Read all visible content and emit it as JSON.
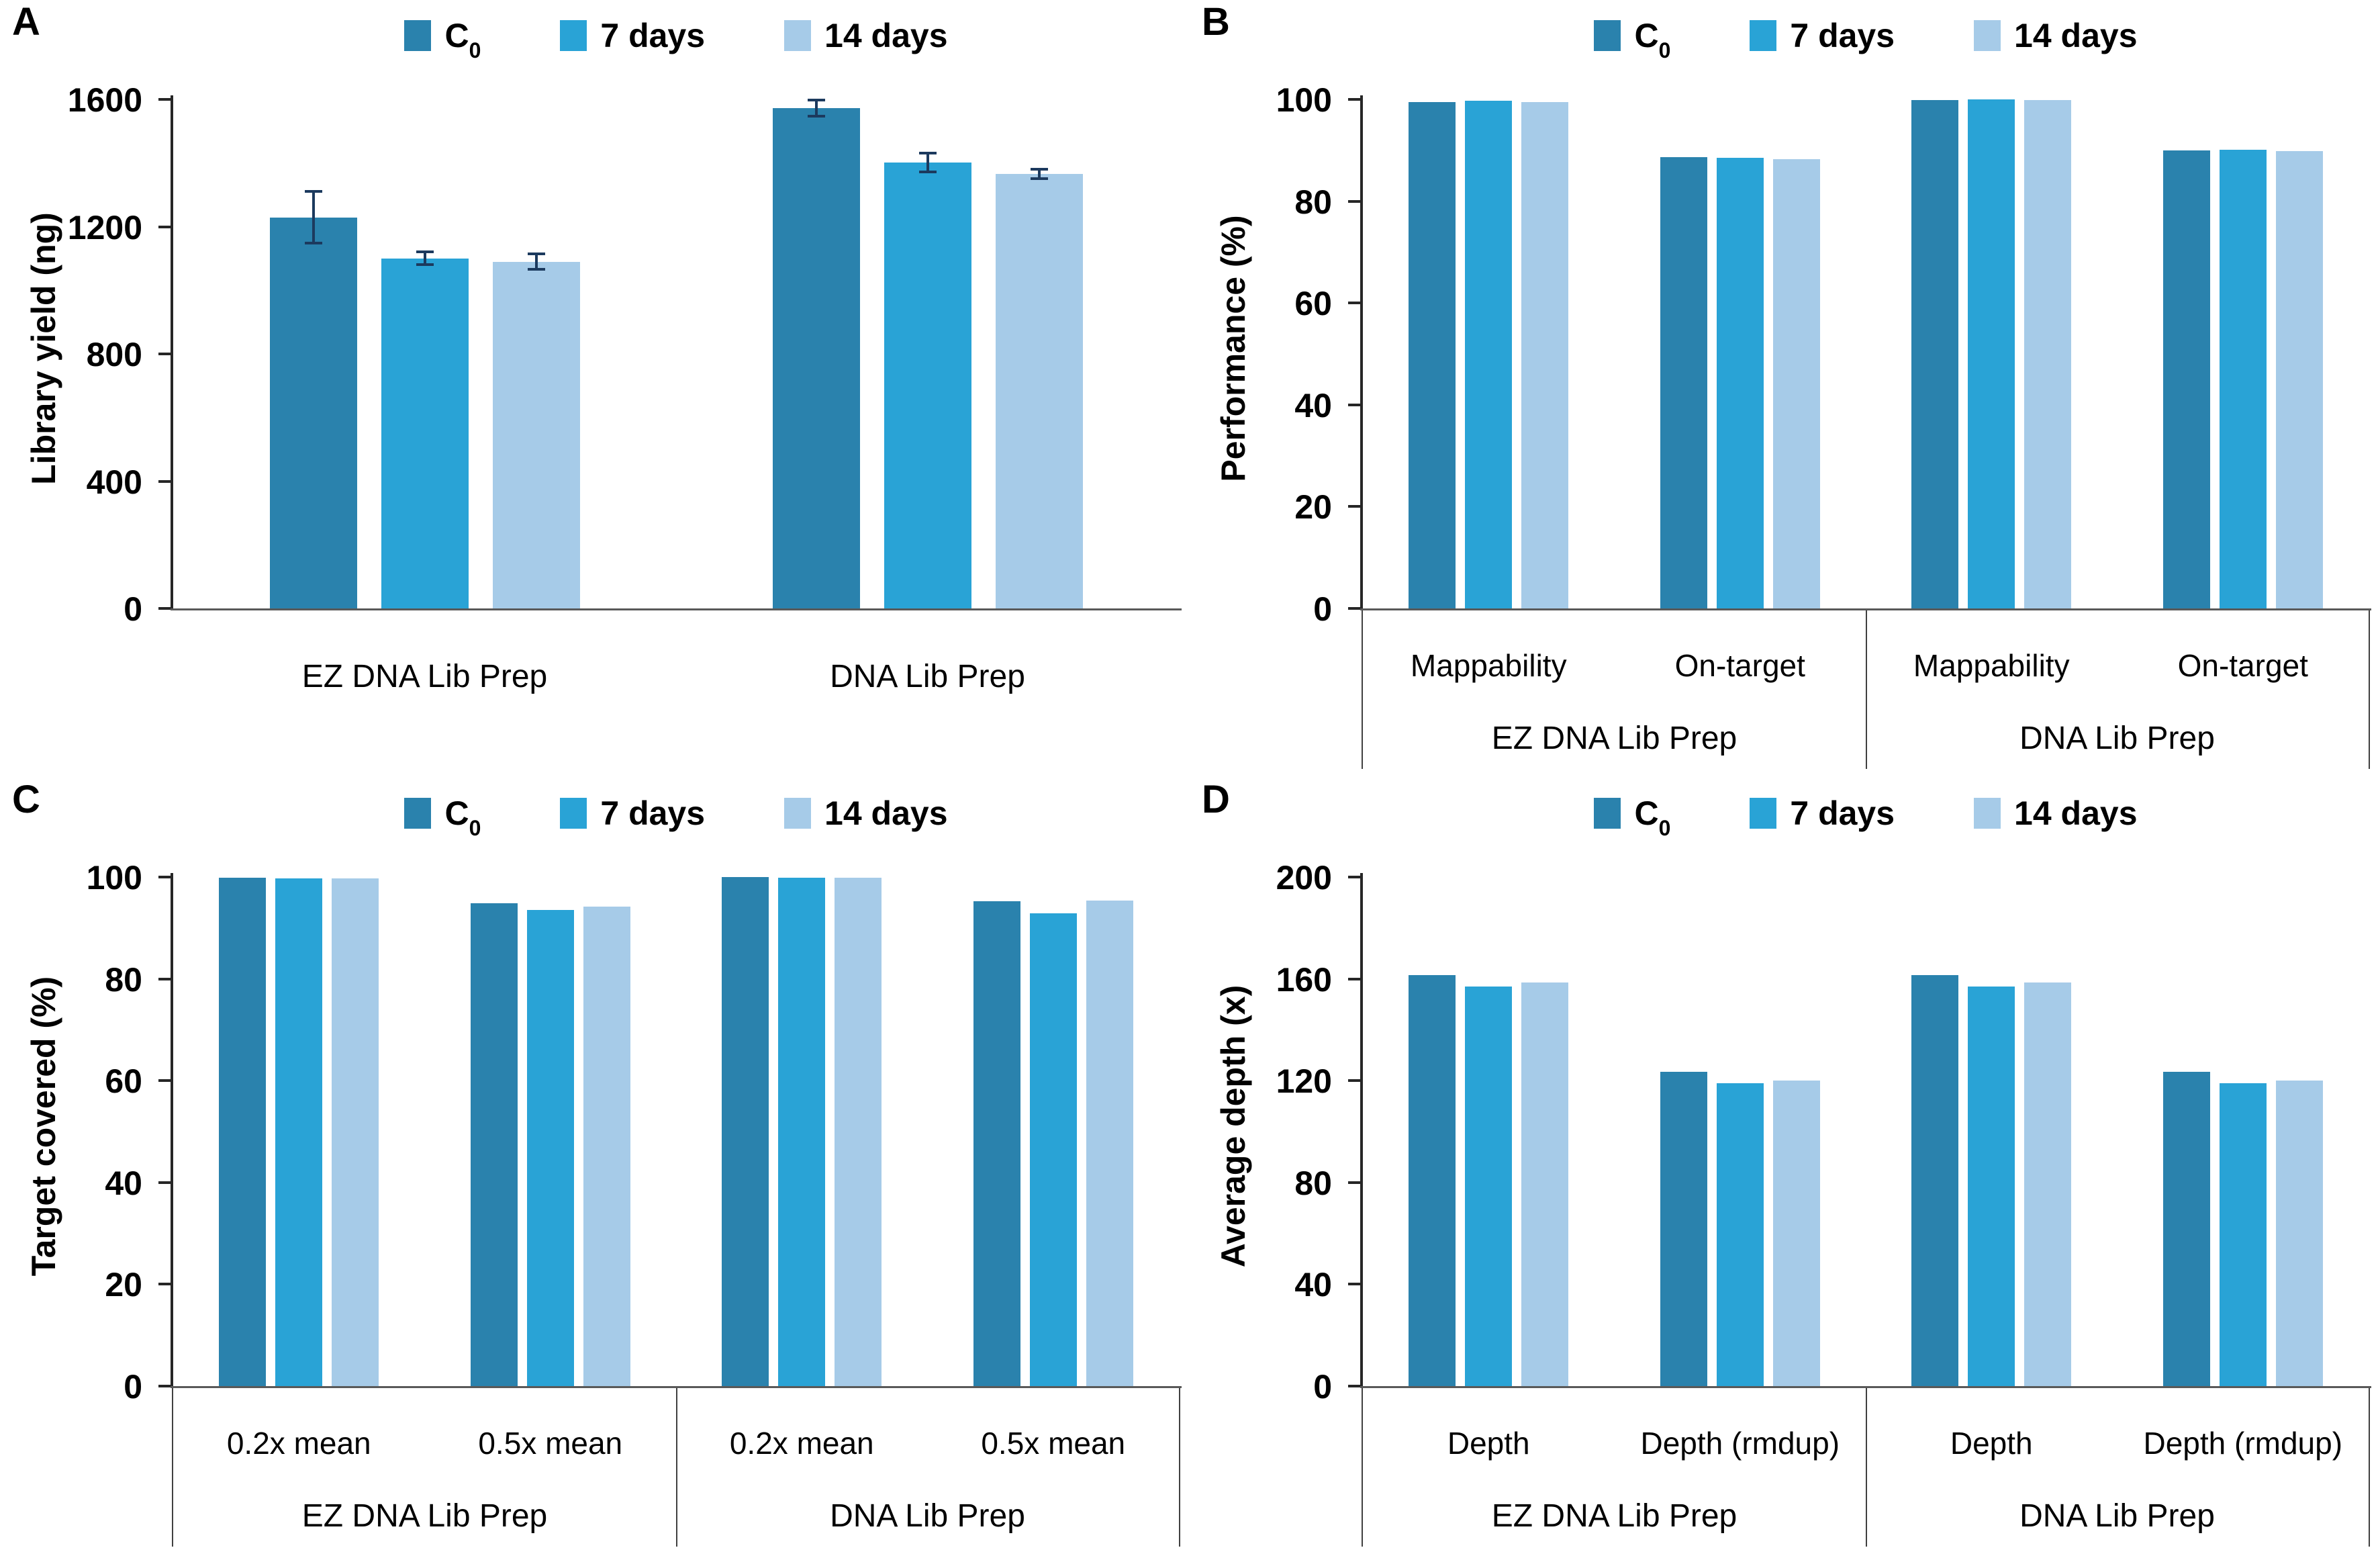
{
  "figure": {
    "background": "#ffffff"
  },
  "colors": {
    "series": [
      "#2A82AD",
      "#29A3D6",
      "#A6CBE8"
    ],
    "error_bar": "#1C3A5E",
    "axis_line": "#262626",
    "baseline": "#595959",
    "divider": "#404040",
    "text": "#000000"
  },
  "legend": {
    "items": [
      {
        "label": "C",
        "subscript": "0"
      },
      {
        "label": "7 days",
        "subscript": ""
      },
      {
        "label": "14 days",
        "subscript": ""
      }
    ]
  },
  "chart_data": [
    {
      "id": "A",
      "type": "bar",
      "ylabel": "Library yield (ng)",
      "xlabel": "",
      "ymin": 0,
      "ymax": 1600,
      "yticks": [
        0,
        400,
        800,
        1200,
        1600
      ],
      "grid": false,
      "legend_position": "top",
      "series_names": [
        "C0",
        "7 days",
        "14 days"
      ],
      "axis_boxed": false,
      "groups": [
        {
          "label": "EZ DNA Lib Prep",
          "cats": [
            {
              "label": "",
              "values": [
                1229,
                1100,
                1090
              ],
              "errors": [
                81,
                20,
                24
              ]
            }
          ]
        },
        {
          "label": "DNA Lib Prep",
          "cats": [
            {
              "label": "",
              "values": [
                1572,
                1401,
                1365
              ],
              "errors": [
                25,
                30,
                15
              ]
            }
          ]
        }
      ]
    },
    {
      "id": "B",
      "type": "bar",
      "ylabel": "Performance (%)",
      "xlabel": "",
      "ymin": 0,
      "ymax": 100,
      "yticks": [
        0,
        20,
        40,
        60,
        80,
        100
      ],
      "grid": false,
      "legend_position": "top",
      "series_names": [
        "C0",
        "7 days",
        "14 days"
      ],
      "axis_boxed": true,
      "groups": [
        {
          "label": "EZ DNA Lib Prep",
          "cats": [
            {
              "label": "Mappability",
              "values": [
                99.5,
                99.7,
                99.5
              ]
            },
            {
              "label": "On-target",
              "values": [
                88.7,
                88.5,
                88.3
              ]
            }
          ]
        },
        {
          "label": "DNA Lib Prep",
          "cats": [
            {
              "label": "Mappability",
              "values": [
                99.9,
                100,
                99.9
              ]
            },
            {
              "label": "On-target",
              "values": [
                90.0,
                90.1,
                89.9
              ]
            }
          ]
        }
      ]
    },
    {
      "id": "C",
      "type": "bar",
      "ylabel": "Target covered (%)",
      "xlabel": "",
      "ymin": 0,
      "ymax": 100,
      "yticks": [
        0,
        20,
        40,
        60,
        80,
        100
      ],
      "grid": false,
      "legend_position": "top",
      "series_names": [
        "C0",
        "7 days",
        "14 days"
      ],
      "axis_boxed": true,
      "groups": [
        {
          "label": "EZ DNA Lib Prep",
          "cats": [
            {
              "label": "0.2x mean",
              "values": [
                99.9,
                99.8,
                99.8
              ]
            },
            {
              "label": "0.5x mean",
              "values": [
                94.8,
                93.6,
                94.2
              ]
            }
          ]
        },
        {
          "label": "DNA Lib Prep",
          "cats": [
            {
              "label": "0.2x mean",
              "values": [
                100,
                99.9,
                99.9
              ]
            },
            {
              "label": "0.5x mean",
              "values": [
                95.2,
                92.9,
                95.4
              ]
            }
          ]
        }
      ]
    },
    {
      "id": "D",
      "type": "bar",
      "ylabel": "Average depth (x)",
      "xlabel": "",
      "ymin": 0,
      "ymax": 200,
      "yticks": [
        0,
        40,
        80,
        120,
        160,
        200
      ],
      "grid": false,
      "legend_position": "top",
      "series_names": [
        "C0",
        "7 days",
        "14 days"
      ],
      "axis_boxed": true,
      "groups": [
        {
          "label": "EZ DNA Lib Prep",
          "cats": [
            {
              "label": "Depth",
              "values": [
                161.5,
                157,
                158.5
              ]
            },
            {
              "label": "Depth (rmdup)",
              "values": [
                123.5,
                119,
                120
              ]
            }
          ]
        },
        {
          "label": "DNA Lib Prep",
          "cats": [
            {
              "label": "Depth",
              "values": [
                161.5,
                157,
                158.5
              ]
            },
            {
              "label": "Depth (rmdup)",
              "values": [
                123.5,
                119,
                120
              ]
            }
          ]
        }
      ]
    }
  ]
}
